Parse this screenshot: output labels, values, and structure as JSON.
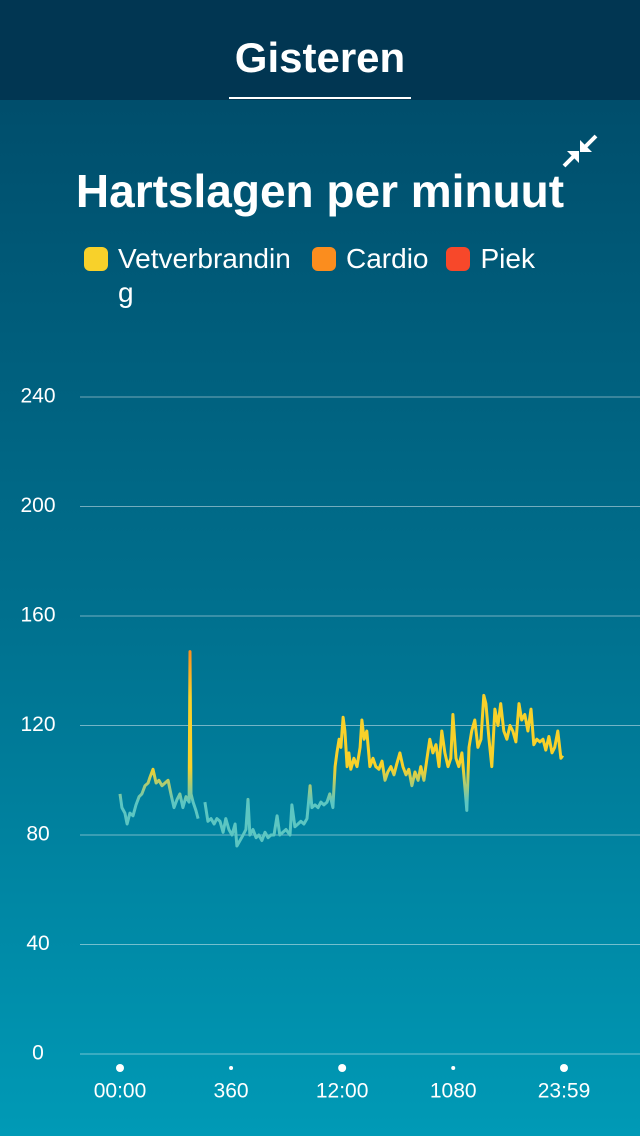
{
  "header": {
    "title": "Gisteren"
  },
  "chart_data": {
    "type": "line",
    "title": "Hartslagen per minuut",
    "zones": [
      {
        "name": "Vetverbranding",
        "color": "#f8d12a"
      },
      {
        "name": "Cardio",
        "color": "#fb8d1e"
      },
      {
        "name": "Piek",
        "color": "#f7482a"
      }
    ],
    "series": [
      {
        "color": "#5cc6c2",
        "x": [
          0,
          6,
          16,
          23,
          32,
          42,
          52,
          62,
          71,
          81,
          91,
          97,
          107,
          117,
          126,
          136,
          146,
          156,
          165,
          175,
          185,
          194,
          204,
          214,
          224,
          227,
          230,
          237,
          246,
          253,
          262,
          275,
          285,
          295,
          305,
          314,
          324,
          334,
          343,
          353,
          363,
          373,
          379,
          389,
          399,
          408,
          415,
          421,
          431,
          441,
          450,
          460,
          470,
          480,
          489,
          499,
          509,
          518,
          528,
          538,
          551,
          557,
          567,
          577,
          586,
          596,
          606,
          616,
          622,
          632,
          642,
          651,
          661,
          671,
          680,
          690,
          697,
          703,
          710,
          716,
          723,
          729,
          736,
          742,
          748,
          758,
          768,
          778,
          784,
          791,
          800,
          810,
          820,
          829,
          839,
          849,
          859,
          868,
          878,
          888,
          897,
          907,
          917,
          927,
          936,
          946,
          956,
          966,
          975,
          985,
          995,
          1004,
          1014,
          1024,
          1034,
          1043,
          1053,
          1063,
          1072,
          1079,
          1089,
          1098,
          1108,
          1118,
          1124,
          1131,
          1140,
          1150,
          1160,
          1170,
          1179,
          1186,
          1196,
          1205,
          1215,
          1225,
          1234,
          1244,
          1254,
          1264,
          1273,
          1283,
          1293,
          1302,
          1312,
          1322,
          1332,
          1341,
          1351,
          1361,
          1371,
          1380,
          1390,
          1400,
          1409,
          1419,
          1429,
          1435
        ],
        "values": [
          95,
          90,
          88,
          84,
          88,
          87,
          91,
          94,
          95,
          98,
          99,
          101,
          104,
          99,
          100,
          98,
          99,
          100,
          95,
          90,
          93,
          95,
          90,
          94,
          92,
          147,
          95,
          92,
          89,
          86,
          null,
          92,
          85,
          86,
          84,
          86,
          85,
          81,
          86,
          82,
          80,
          84,
          76,
          78,
          80,
          82,
          93,
          80,
          82,
          79,
          80,
          78,
          81,
          79,
          80,
          80,
          87,
          80,
          81,
          82,
          80,
          91,
          83,
          84,
          85,
          84,
          86,
          98,
          90,
          91,
          90,
          92,
          91,
          92,
          95,
          90,
          105,
          110,
          115,
          112,
          123,
          118,
          105,
          110,
          104,
          108,
          105,
          112,
          122,
          115,
          118,
          105,
          108,
          105,
          104,
          107,
          100,
          103,
          105,
          102,
          106,
          110,
          105,
          102,
          104,
          98,
          103,
          100,
          105,
          100,
          108,
          115,
          110,
          113,
          105,
          118,
          110,
          105,
          108,
          124,
          108,
          105,
          110,
          97,
          89,
          112,
          118,
          122,
          112,
          115,
          131,
          128,
          115,
          105,
          126,
          120,
          128,
          118,
          115,
          120,
          118,
          114,
          128,
          122,
          124,
          118,
          126,
          113,
          115,
          114,
          115,
          111,
          116,
          110,
          112,
          118,
          108,
          109
        ]
      }
    ],
    "xlim": [
      0,
      1439
    ],
    "xticks": [
      {
        "value": 0,
        "label": "00:00"
      },
      360,
      {
        "value": 720,
        "label": "12:00"
      },
      1080,
      {
        "value": 1439,
        "label": "23:59"
      }
    ],
    "ylim": [
      0,
      240
    ],
    "yticks": [
      0,
      40,
      80,
      120,
      160,
      200,
      240
    ],
    "grid": true
  }
}
